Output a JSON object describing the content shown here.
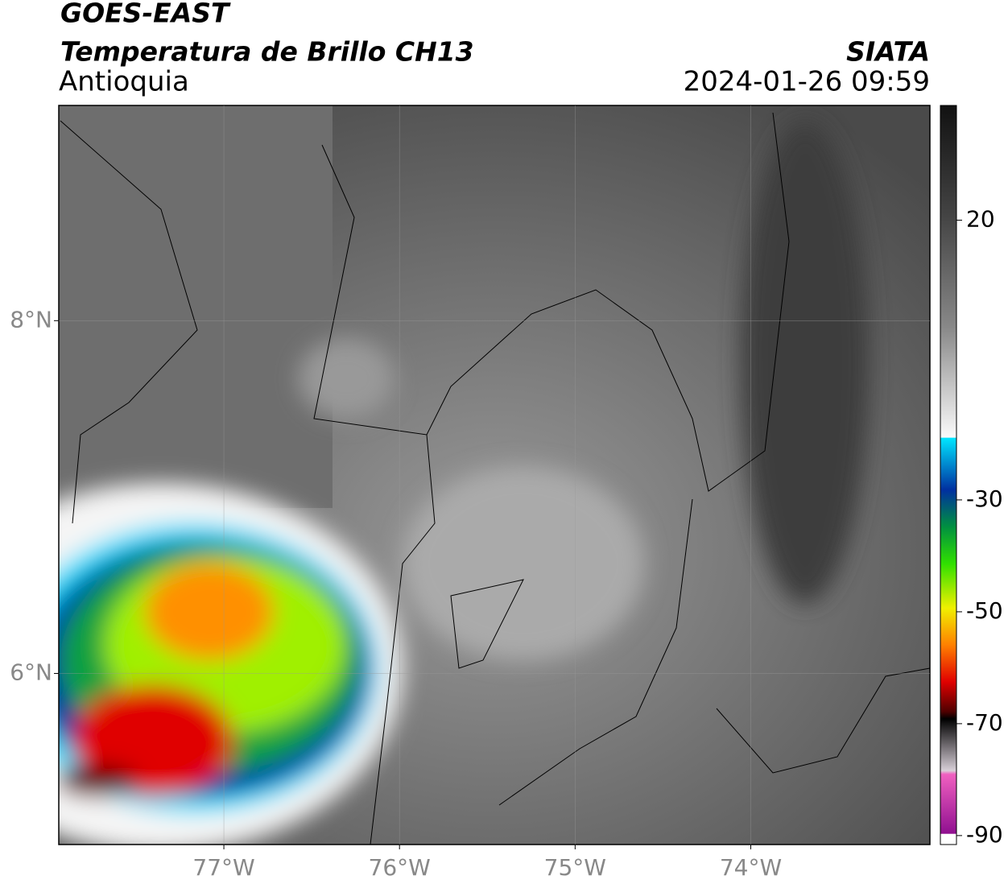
{
  "header": {
    "title": "GOES-EAST",
    "subtitle": "Temperatura de Brillo CH13",
    "region": "Antioquia",
    "source": "SIATA",
    "datetime": "2024-01-26 09:59"
  },
  "map": {
    "xlim": [
      -77.94,
      -72.98
    ],
    "ylim": [
      5.03,
      9.22
    ],
    "xticks": [
      {
        "value": -77,
        "label": "77°W"
      },
      {
        "value": -76,
        "label": "76°W"
      },
      {
        "value": -75,
        "label": "75°W"
      },
      {
        "value": -74,
        "label": "74°W"
      }
    ],
    "yticks": [
      {
        "value": 8,
        "label": "8°N"
      },
      {
        "value": 6,
        "label": "6°N"
      }
    ],
    "grid": true
  },
  "colorbar": {
    "lim": [
      -91.6,
      40.5
    ],
    "ticks": [
      20,
      -30,
      -50,
      -70,
      -90
    ]
  }
}
